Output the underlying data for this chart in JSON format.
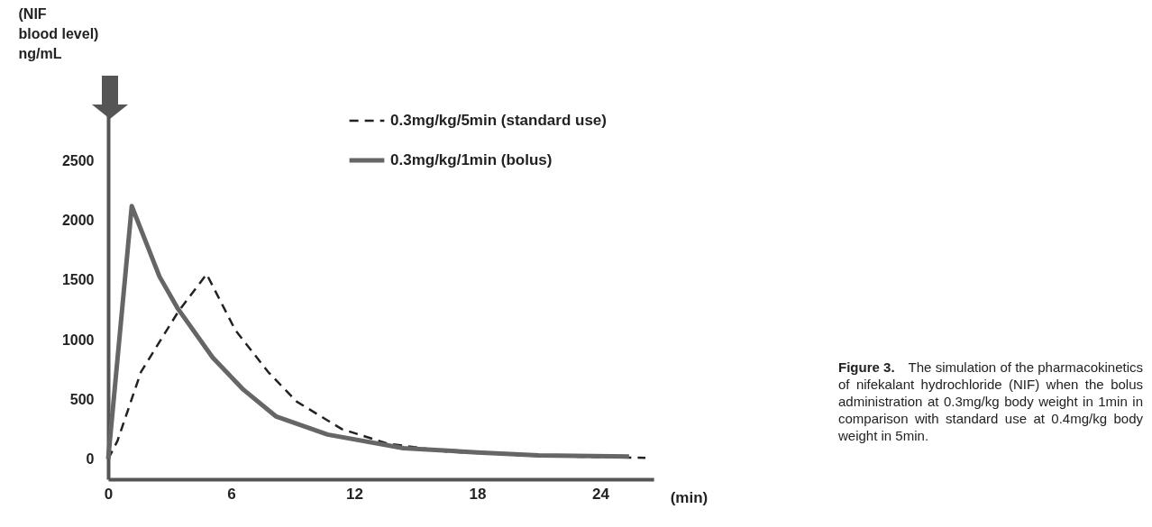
{
  "chart_data": {
    "type": "line",
    "ylabel": "(NIF\nblood level)\nng/mL",
    "xlabel": "(min)",
    "xlim": [
      0,
      26.6
    ],
    "xticks": [
      0,
      6,
      12,
      18,
      24
    ],
    "ylim": [
      -170,
      3130
    ],
    "yticks": [
      0,
      500,
      1000,
      1500,
      2000,
      2500
    ],
    "legend": "top",
    "series": [
      {
        "name": "0.3mg/kg/5min (standard use)",
        "color": "#222222",
        "line_style": "dashed",
        "x": [
          0,
          0.45,
          1.6,
          3.4,
          4.8,
          6.2,
          7.8,
          9.2,
          11.4,
          13.6,
          16.6,
          21,
          26.2
        ],
        "values": [
          0,
          150,
          730,
          1230,
          1550,
          1080,
          730,
          480,
          250,
          130,
          60,
          25,
          10
        ]
      },
      {
        "name": "0.3mg/kg/1min (bolus)",
        "color": "#666666",
        "line_style": "solid",
        "x": [
          0,
          1.15,
          2.5,
          3.4,
          5.1,
          6.6,
          8.2,
          10.7,
          14.4,
          18,
          21,
          25.4
        ],
        "values": [
          0,
          2120,
          1530,
          1260,
          850,
          580,
          355,
          205,
          90,
          55,
          30,
          20
        ]
      }
    ],
    "annotations": [
      "Figure 3.",
      "The simulation of the pharmacokinetics of nifekalant hydrochloride (NIF) when the bolus administration at 0.3mg/kg body weight in 1min in comparison with standard use at 0.4mg/kg body weight in 5min."
    ]
  }
}
